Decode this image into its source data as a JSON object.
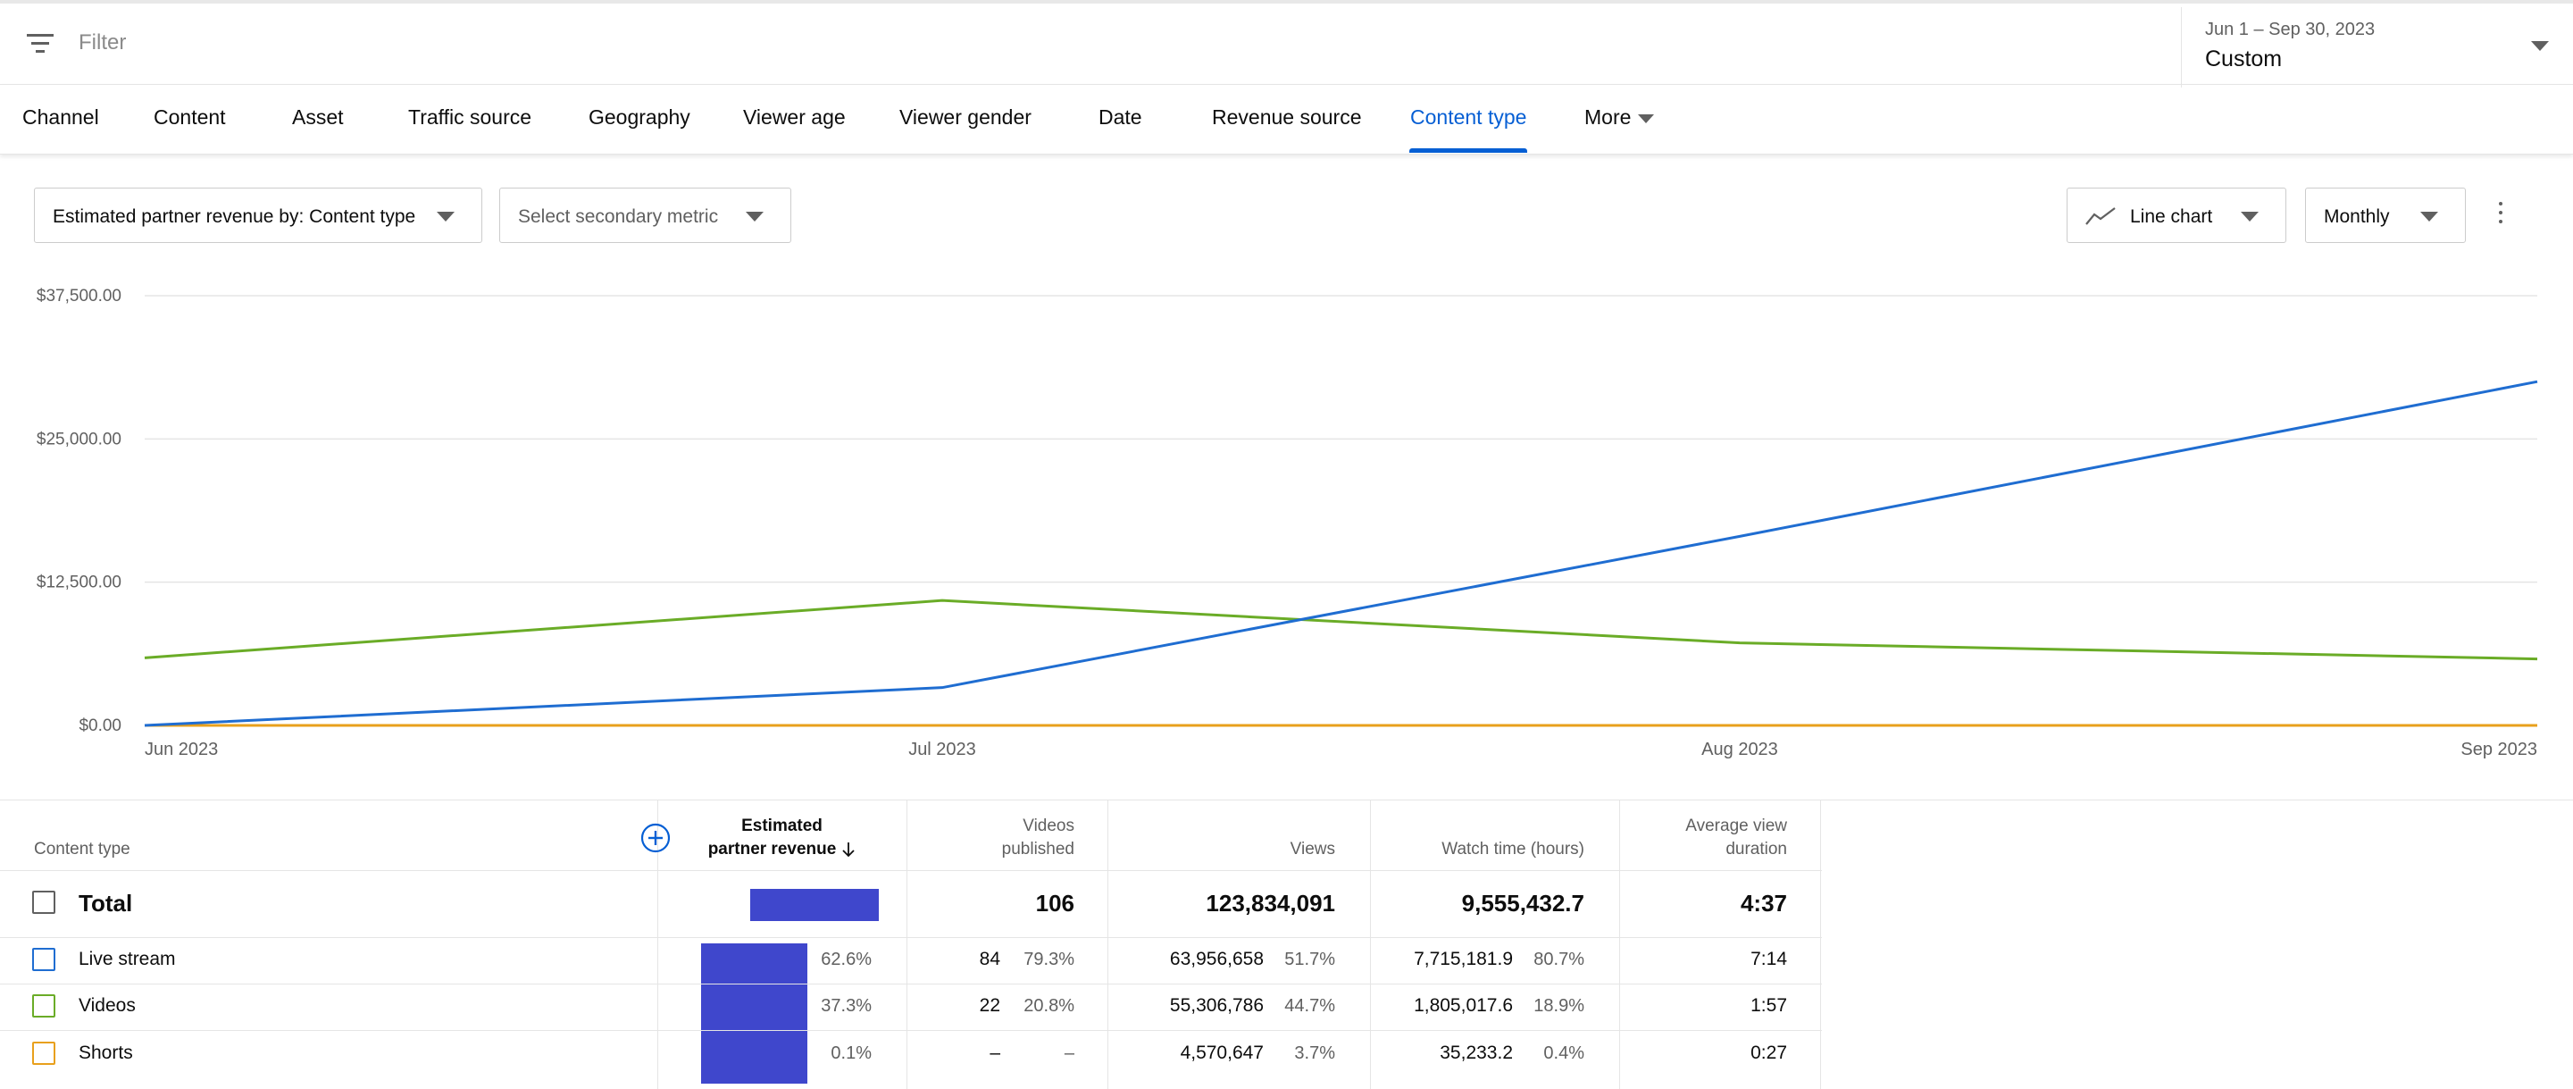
{
  "filter": {
    "placeholder": "Filter",
    "icon": "filter-icon"
  },
  "date": {
    "range": "Jun 1 – Sep 30, 2023",
    "value": "Custom"
  },
  "tabs": [
    {
      "label": "Channel"
    },
    {
      "label": "Content"
    },
    {
      "label": "Asset"
    },
    {
      "label": "Traffic source"
    },
    {
      "label": "Geography"
    },
    {
      "label": "Viewer age"
    },
    {
      "label": "Viewer gender"
    },
    {
      "label": "Date"
    },
    {
      "label": "Revenue source"
    },
    {
      "label": "Content type",
      "active": true
    },
    {
      "label": "More"
    }
  ],
  "controls": {
    "primary_metric": "Estimated partner revenue by: Content type",
    "secondary_metric": "Select secondary metric",
    "chart_type": "Line chart",
    "interval": "Monthly"
  },
  "colors": {
    "accent": "#065fd4",
    "live_stream": "#1f6dd1",
    "videos": "#6aac27",
    "shorts": "#e8a01c",
    "bar": "#3f47cc"
  },
  "chart_data": {
    "type": "line",
    "x": [
      "Jun 2023",
      "Jul 2023",
      "Aug 2023",
      "Sep 2023"
    ],
    "y_ticks": [
      "$0.00",
      "$12,500.00",
      "$25,000.00",
      "$37,500.00"
    ],
    "ylim": [
      0,
      37500
    ],
    "grid": true,
    "series": [
      {
        "name": "Live stream",
        "color": "#1f6dd1",
        "values": [
          0,
          3300,
          16500,
          30000
        ]
      },
      {
        "name": "Videos",
        "color": "#6aac27",
        "values": [
          5900,
          10900,
          7200,
          5800
        ]
      },
      {
        "name": "Shorts",
        "color": "#e8a01c",
        "values": [
          0,
          0,
          0,
          0
        ]
      }
    ]
  },
  "table": {
    "headers": {
      "content_type": "Content type",
      "revenue_line1": "Estimated",
      "revenue_line2": "partner revenue",
      "videos_line1": "Videos",
      "videos_line2": "published",
      "views": "Views",
      "watch_time": "Watch time (hours)",
      "avd_line1": "Average view",
      "avd_line2": "duration"
    },
    "total": {
      "label": "Total",
      "videos": "106",
      "views": "123,834,091",
      "watch_time": "9,555,432.7",
      "avd": "4:37"
    },
    "rows": [
      {
        "label": "Live stream",
        "rev_pct": "62.6%",
        "rev_share": 0.626,
        "videos": "84",
        "videos_pct": "79.3%",
        "views": "63,956,658",
        "views_pct": "51.7%",
        "watch": "7,715,181.9",
        "watch_pct": "80.7%",
        "avd": "7:14"
      },
      {
        "label": "Videos",
        "rev_pct": "37.3%",
        "rev_share": 0.373,
        "videos": "22",
        "videos_pct": "20.8%",
        "views": "55,306,786",
        "views_pct": "44.7%",
        "watch": "1,805,017.6",
        "watch_pct": "18.9%",
        "avd": "1:57"
      },
      {
        "label": "Shorts",
        "rev_pct": "0.1%",
        "rev_share": 0.001,
        "videos": "–",
        "videos_pct": "–",
        "views": "4,570,647",
        "views_pct": "3.7%",
        "watch": "35,233.2",
        "watch_pct": "0.4%",
        "avd": "0:27"
      }
    ]
  }
}
